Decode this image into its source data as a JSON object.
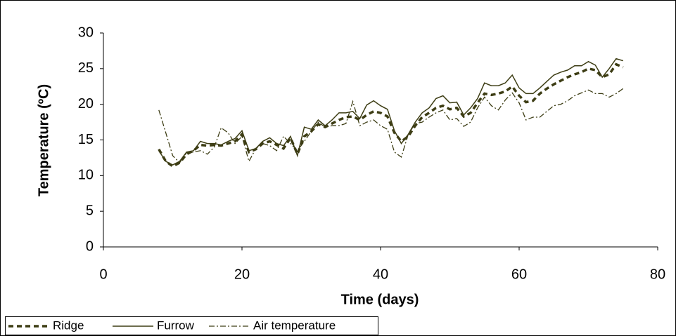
{
  "chart_data": {
    "type": "line",
    "xlabel": "Time (days)",
    "ylabel": "Temperature (ºC)",
    "x": [
      8,
      9,
      10,
      11,
      12,
      13,
      14,
      15,
      16,
      17,
      18,
      19,
      20,
      21,
      22,
      23,
      24,
      25,
      26,
      27,
      28,
      29,
      30,
      31,
      32,
      33,
      34,
      35,
      36,
      37,
      38,
      39,
      40,
      41,
      42,
      43,
      44,
      45,
      46,
      47,
      48,
      49,
      50,
      51,
      52,
      53,
      54,
      55,
      56,
      57,
      58,
      59,
      60,
      61,
      62,
      63,
      64,
      65,
      66,
      67,
      68,
      69,
      70,
      71,
      72,
      73,
      74,
      75
    ],
    "series": [
      {
        "name": "Ridge",
        "color": "#3d3d14",
        "style": "dashed",
        "values": [
          13.7,
          12,
          11.3,
          11.8,
          13,
          13.5,
          14.3,
          14.2,
          14.3,
          14.2,
          14.5,
          14.8,
          15.8,
          13.3,
          13.7,
          14.5,
          14.8,
          14.3,
          13.8,
          15.3,
          13,
          15.5,
          16.2,
          17.2,
          16.8,
          17.3,
          17.8,
          18.2,
          18.3,
          17.8,
          18.5,
          19,
          18.8,
          18.3,
          16,
          14.8,
          15.5,
          17,
          18.2,
          18.8,
          19.5,
          19.8,
          19.3,
          19.5,
          18.3,
          18.8,
          20.2,
          21.5,
          21.3,
          21.5,
          21.8,
          22.5,
          21.2,
          20.3,
          20.5,
          21.5,
          22.2,
          22.8,
          23.3,
          23.8,
          24.2,
          24.5,
          25,
          24.8,
          23.8,
          24.2,
          25.6,
          25.2
        ]
      },
      {
        "name": "Furrow",
        "color": "#3d3d14",
        "style": "solid",
        "values": [
          13.5,
          12,
          11.5,
          12,
          13.3,
          13.5,
          14.8,
          14.5,
          14.5,
          14.3,
          14.8,
          15.2,
          16.3,
          13.5,
          13.8,
          14.8,
          15.3,
          14.5,
          14.2,
          15.5,
          12.8,
          16.8,
          16.5,
          17.8,
          17,
          17.8,
          18.8,
          18.8,
          19,
          18,
          19.9,
          20.5,
          19.8,
          19.3,
          16.3,
          14.5,
          15.8,
          17.5,
          18.8,
          19.5,
          20.8,
          21.2,
          20.2,
          20.3,
          18.5,
          19.5,
          20.8,
          23,
          22.6,
          22.6,
          23,
          24.1,
          22.3,
          21.5,
          21.5,
          22.3,
          23.2,
          24.1,
          24.5,
          24.8,
          25.4,
          25.4,
          26,
          25.5,
          23.8,
          25,
          26.4,
          26.1
        ]
      },
      {
        "name": "Air temperature",
        "color": "#3d3d14",
        "style": "dashdot",
        "values": [
          19.2,
          16,
          12.8,
          11.8,
          13.2,
          13.3,
          13.5,
          13,
          14,
          16.7,
          16,
          14.5,
          15.5,
          12,
          13.8,
          14.5,
          14.2,
          13.5,
          15.5,
          14.5,
          13.5,
          14.8,
          16.2,
          17.5,
          16.8,
          17,
          17,
          17.3,
          20.4,
          17,
          17.5,
          17.8,
          17,
          16.5,
          13.3,
          12.6,
          15.8,
          17.3,
          17.5,
          18.2,
          18.8,
          19.2,
          17.8,
          18,
          16.9,
          17.5,
          19.5,
          21,
          19.8,
          19.2,
          20.6,
          21.6,
          20.2,
          17.8,
          18.2,
          18.2,
          19,
          19.8,
          20,
          20.5,
          21.2,
          21.6,
          22,
          21.5,
          21.5,
          21,
          21.5,
          22.2
        ]
      }
    ],
    "xlim": [
      0,
      80
    ],
    "xticks": [
      0,
      20,
      40,
      60,
      80
    ],
    "ylim": [
      0,
      30
    ],
    "yticks": [
      0,
      5,
      10,
      15,
      20,
      25,
      30
    ],
    "legend": "bottom-left"
  }
}
